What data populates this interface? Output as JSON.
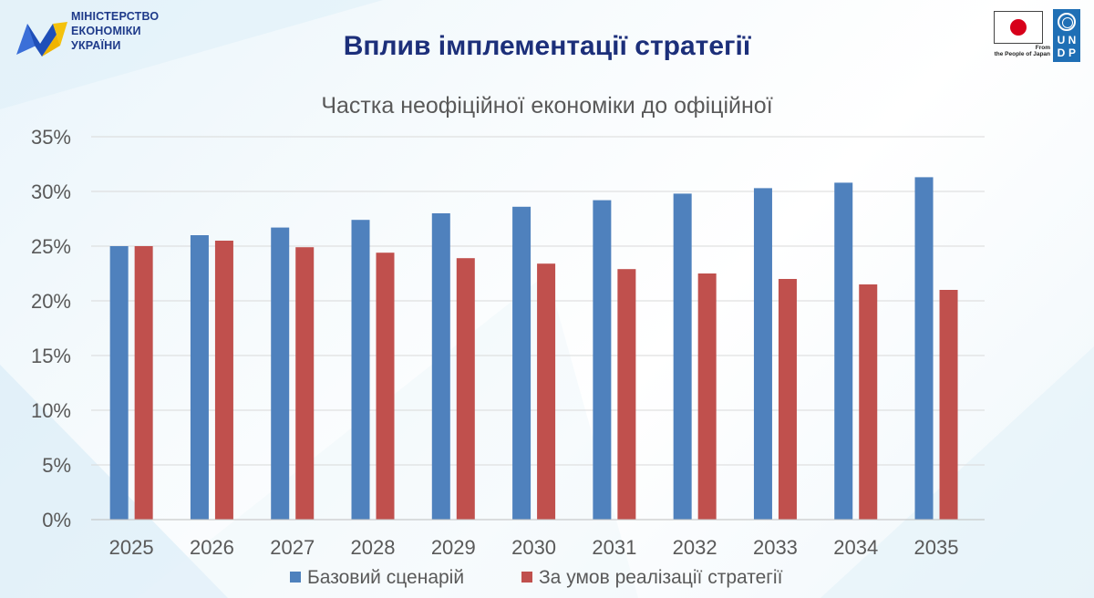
{
  "header": {
    "ministry_lines": [
      "МІНІСТЕРСТВО",
      "ЕКОНОМІКИ",
      "УКРАЇНИ"
    ],
    "slide_title": "Вплив імплементації стратегії",
    "japan_caption_line1": "From",
    "japan_caption_line2": "the People of Japan",
    "undp_letters": [
      "U",
      "N",
      "D",
      "P"
    ]
  },
  "colors": {
    "title": "#1c2f7a",
    "series_base": "#4f81bd",
    "series_strategy": "#c0504d",
    "grid": "#d9d9d9",
    "axis_text": "#595959"
  },
  "chart_data": {
    "type": "bar",
    "title": "Частка неофіційної економіки до офіційної",
    "categories": [
      "2025",
      "2026",
      "2027",
      "2028",
      "2029",
      "2030",
      "2031",
      "2032",
      "2033",
      "2034",
      "2035"
    ],
    "series": [
      {
        "name": "Базовий сценарій",
        "values": [
          25.0,
          26.0,
          26.7,
          27.4,
          28.0,
          28.6,
          29.2,
          29.8,
          30.3,
          30.8,
          31.3
        ]
      },
      {
        "name": "За умов реалізації стратегії",
        "values": [
          25.0,
          25.5,
          24.9,
          24.4,
          23.9,
          23.4,
          22.9,
          22.5,
          22.0,
          21.5,
          21.0
        ]
      }
    ],
    "ylim": [
      0,
      35
    ],
    "ytick_labels": [
      "0%",
      "5%",
      "10%",
      "15%",
      "20%",
      "25%",
      "30%",
      "35%"
    ],
    "grid": true,
    "legend": "bottom"
  }
}
